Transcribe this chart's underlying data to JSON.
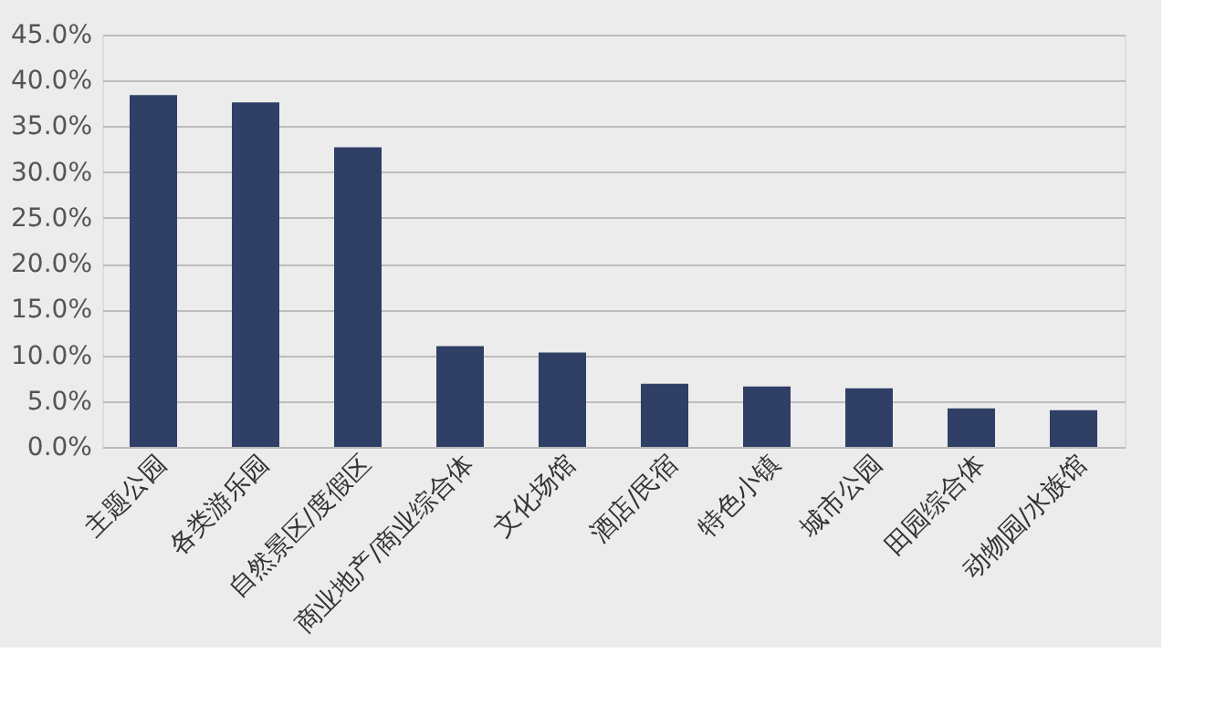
{
  "chart_data": {
    "type": "bar",
    "categories": [
      "主题公园",
      "各类游乐园",
      "自然景区/度假区",
      "商业地产/商业综合体",
      "文化场馆",
      "酒店/民宿",
      "特色小镇",
      "城市公园",
      "田园综合体",
      "动物园/水族馆"
    ],
    "values": [
      38.4,
      37.6,
      32.7,
      11.0,
      10.3,
      6.9,
      6.6,
      6.4,
      4.2,
      4.0
    ],
    "color": "#2f3f66",
    "ylim": [
      0,
      45
    ],
    "yticks": [
      {
        "value": 0,
        "label": "0.0%"
      },
      {
        "value": 5,
        "label": "5.0%"
      },
      {
        "value": 10,
        "label": "10.0%"
      },
      {
        "value": 15,
        "label": "15.0%"
      },
      {
        "value": 20,
        "label": "20.0%"
      },
      {
        "value": 25,
        "label": "25.0%"
      },
      {
        "value": 30,
        "label": "30.0%"
      },
      {
        "value": 35,
        "label": "35.0%"
      },
      {
        "value": 40,
        "label": "40.0%"
      },
      {
        "value": 45,
        "label": "45.0%"
      }
    ],
    "grid": "y"
  }
}
